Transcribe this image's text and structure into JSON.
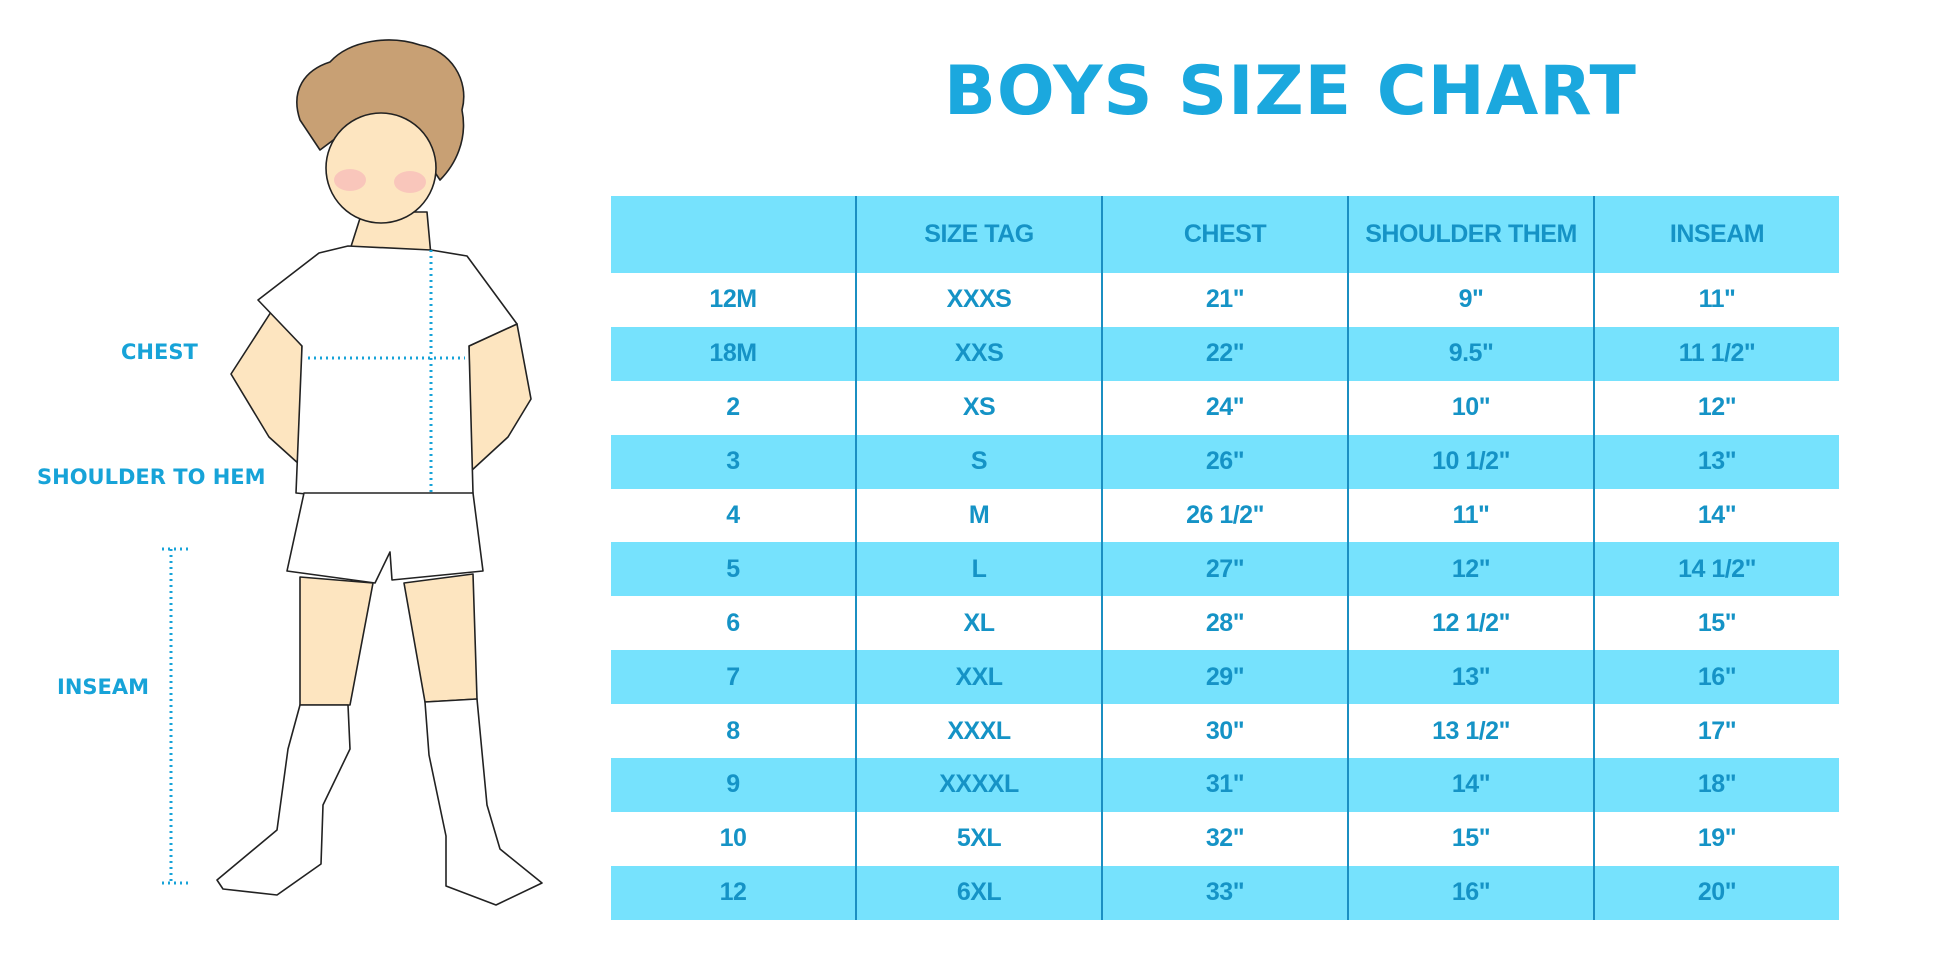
{
  "title": "BOYS SIZE CHART",
  "labels": {
    "chest": "CHEST",
    "shoulder_to_hem": "SHOULDER TO HEM",
    "inseam": "INSEAM"
  },
  "colors": {
    "accent": "#1ba8de",
    "header_bg": "#76e2fd",
    "table_text": "#1593c6",
    "divider": "#1b8fc2"
  },
  "table": {
    "headers": [
      "",
      "SIZE TAG",
      "CHEST",
      "SHOULDER THEM",
      "INSEAM"
    ],
    "rows": [
      [
        "12M",
        "XXXS",
        "21\"",
        "9\"",
        "11\""
      ],
      [
        "18M",
        "XXS",
        "22\"",
        "9.5\"",
        "11 1/2\""
      ],
      [
        "2",
        "XS",
        "24\"",
        "10\"",
        "12\""
      ],
      [
        "3",
        "S",
        "26\"",
        "10 1/2\"",
        "13\""
      ],
      [
        "4",
        "M",
        "26 1/2\"",
        "11\"",
        "14\""
      ],
      [
        "5",
        "L",
        "27\"",
        "12\"",
        "14 1/2\""
      ],
      [
        "6",
        "XL",
        "28\"",
        "12 1/2\"",
        "15\""
      ],
      [
        "7",
        "XXL",
        "29\"",
        "13\"",
        "16\""
      ],
      [
        "8",
        "XXXL",
        "30\"",
        "13 1/2\"",
        "17\""
      ],
      [
        "9",
        "XXXXL",
        "31\"",
        "14\"",
        "18\""
      ],
      [
        "10",
        "5XL",
        "32\"",
        "15\"",
        "19\""
      ],
      [
        "12",
        "6XL",
        "33\"",
        "16\"",
        "20\""
      ]
    ]
  }
}
